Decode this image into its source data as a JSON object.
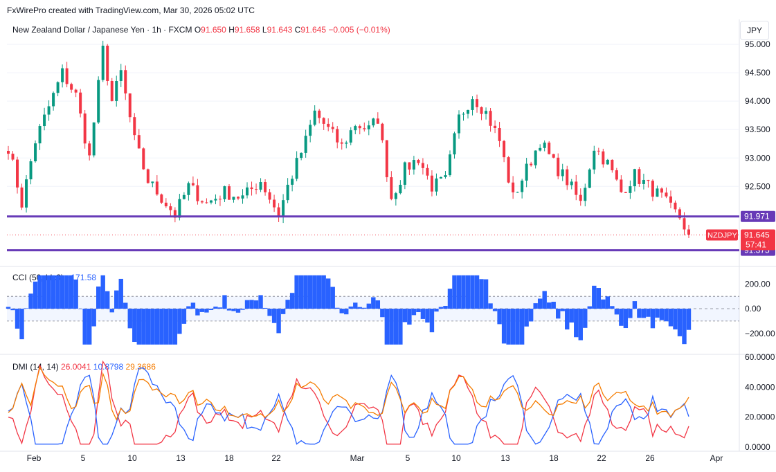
{
  "header": {
    "attribution": "FxWirePro created with TradingView.com, Mar 30, 2026 05:02 UTC"
  },
  "legend": {
    "symbol_name": "New Zealand Dollar / Japanese Yen · 1h · FXCM",
    "o_label": "O",
    "o_value": "91.650",
    "h_label": "H",
    "h_value": "91.658",
    "l_label": "L",
    "l_value": "91.643",
    "c_label": "C",
    "c_value": "91.645",
    "change": "−0.005 (−0.01%)"
  },
  "currency_button": "JPY",
  "colors": {
    "up": "#089981",
    "down": "#f23645",
    "support": "#673ab7",
    "cci": "#2962ff",
    "plus_di": "#f23645",
    "minus_di": "#2962ff",
    "adx": "#f57c00"
  },
  "chart_data": [
    {
      "type": "candlestick",
      "title": "New Zealand Dollar / Japanese Yen · 1h · FXCM",
      "ylim": [
        91.2,
        95.05
      ],
      "y_ticks": [
        "95.000",
        "94.500",
        "94.000",
        "93.500",
        "93.000",
        "92.500"
      ],
      "x_ticks": [
        "Feb",
        "5",
        "10",
        "13",
        "18",
        "22",
        "Mar",
        "5",
        "10",
        "13",
        "18",
        "22",
        "26",
        "Apr"
      ],
      "close_path": [
        [
          0,
          93.2
        ],
        [
          3,
          92.2
        ],
        [
          6,
          93.3
        ],
        [
          9,
          93.9
        ],
        [
          12,
          94.5
        ],
        [
          15,
          94.1
        ],
        [
          18,
          93.0
        ],
        [
          21,
          94.9
        ],
        [
          23,
          94.0
        ],
        [
          25,
          94.5
        ],
        [
          28,
          93.3
        ],
        [
          31,
          92.6
        ],
        [
          34,
          92.3
        ],
        [
          37,
          92.0
        ],
        [
          40,
          92.5
        ],
        [
          44,
          92.2
        ],
        [
          48,
          92.4
        ],
        [
          52,
          92.3
        ],
        [
          56,
          92.6
        ],
        [
          60,
          92.0
        ],
        [
          62,
          92.5
        ],
        [
          66,
          93.3
        ],
        [
          68,
          93.8
        ],
        [
          71,
          93.5
        ],
        [
          74,
          93.2
        ],
        [
          77,
          93.6
        ],
        [
          80,
          93.5
        ],
        [
          82,
          93.7
        ],
        [
          85,
          92.3
        ],
        [
          88,
          92.8
        ],
        [
          91,
          93.0
        ],
        [
          94,
          92.5
        ],
        [
          97,
          92.6
        ],
        [
          100,
          93.7
        ],
        [
          103,
          94.1
        ],
        [
          106,
          93.8
        ],
        [
          109,
          93.3
        ],
        [
          112,
          92.3
        ],
        [
          115,
          92.8
        ],
        [
          118,
          93.3
        ],
        [
          121,
          92.9
        ],
        [
          124,
          92.6
        ],
        [
          127,
          92.2
        ],
        [
          130,
          93.2
        ],
        [
          133,
          92.9
        ],
        [
          136,
          92.4
        ],
        [
          139,
          92.7
        ],
        [
          142,
          92.5
        ],
        [
          145,
          92.3
        ],
        [
          147,
          92.1
        ],
        [
          149,
          91.96
        ],
        [
          151,
          91.65
        ]
      ],
      "current_price": "91.645",
      "current_label": "NZDJPY",
      "countdown": "57:41",
      "levels": [
        "91.971",
        "91.375"
      ]
    },
    {
      "type": "area",
      "name": "CCI (50, hlc3)",
      "value": "−171.58",
      "y_ticks": [
        "200.00",
        "0.00",
        "−200.00"
      ],
      "ylim": [
        -330,
        280
      ],
      "bands": [
        100,
        0,
        -100
      ]
    },
    {
      "type": "line",
      "name": "DMI (14, 14)",
      "values_shown": [
        "26.0041",
        "10.8798",
        "29.3686"
      ],
      "y_ticks": [
        "60.0000",
        "40.0000",
        "20.0000",
        "0.0000"
      ],
      "ylim": [
        0,
        60
      ]
    }
  ]
}
